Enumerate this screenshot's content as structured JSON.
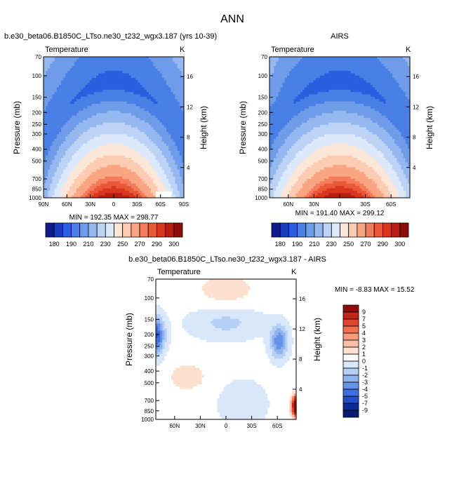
{
  "figure_title": "ANN",
  "chart_data": [
    {
      "type": "heatmap",
      "title": "b.e30_beta06.B1850C_LTso.ne30_t232_wgx3.187 (yrs 10-39)",
      "left_label": "Temperature",
      "right_label": "K",
      "ylabel": "Pressure (mb)",
      "y2label": "Height (km)",
      "x_ticks": [
        "90N",
        "60N",
        "30N",
        "0",
        "30S",
        "60S",
        "90S"
      ],
      "y_ticks": [
        70,
        100,
        150,
        200,
        250,
        300,
        400,
        500,
        700,
        850,
        1000
      ],
      "y2_ticks": [
        16,
        12,
        8,
        4
      ],
      "ylim": [
        70,
        1000
      ],
      "stats": "MIN = 192.35  MAX = 298.77",
      "stats_min": 192.35,
      "stats_max": 298.77,
      "levels_label": [
        "180",
        "190",
        "210",
        "230",
        "250",
        "270",
        "290",
        "300"
      ]
    },
    {
      "type": "heatmap",
      "title": "AIRS",
      "left_label": "Temperature",
      "right_label": "K",
      "ylabel": "Pressure (mb)",
      "y2label": "Height (km)",
      "x_ticks": [
        "60N",
        "30N",
        "0",
        "30S",
        "60S"
      ],
      "y_ticks": [
        70,
        100,
        150,
        200,
        250,
        300,
        400,
        500,
        700,
        850,
        1000
      ],
      "y2_ticks": [
        16,
        12,
        8,
        4
      ],
      "ylim": [
        70,
        1000
      ],
      "stats": "MIN = 191.40  MAX = 299.12",
      "stats_min": 191.4,
      "stats_max": 299.12,
      "levels_label": [
        "180",
        "190",
        "210",
        "230",
        "250",
        "270",
        "290",
        "300"
      ]
    },
    {
      "type": "heatmap",
      "title": "b.e30_beta06.B1850C_LTso.ne30_t232_wgx3.187 - AIRS",
      "left_label": "Temperature",
      "right_label": "K",
      "ylabel": "Pressure (mb)",
      "y2label": "Height (km)",
      "x_ticks": [
        "60N",
        "30N",
        "0",
        "30S",
        "60S"
      ],
      "y_ticks": [
        70,
        100,
        150,
        200,
        250,
        300,
        400,
        500,
        700,
        850,
        1000
      ],
      "y2_ticks": [
        16,
        12,
        8,
        4
      ],
      "ylim": [
        70,
        1000
      ],
      "stats": "MIN =  -8.83  MAX =  15.52",
      "stats_min": -8.83,
      "stats_max": 15.52,
      "legend_labels": [
        "9",
        "7",
        "5",
        "4",
        "3",
        "2",
        "1",
        "0",
        "-1",
        "-2",
        "-3",
        "-4",
        "-5",
        "-7",
        "-9"
      ]
    }
  ],
  "colors": {
    "abs_scale": [
      "#0d1b8c",
      "#1a3dc0",
      "#2b5fe0",
      "#4a7fe6",
      "#6f9ce8",
      "#96b8f0",
      "#bcd3f5",
      "#dce9fa",
      "#fbe6d8",
      "#fccbb1",
      "#f9a582",
      "#f47c5c",
      "#ea5838",
      "#d93620",
      "#b81e12",
      "#8c0e08"
    ],
    "diff_scale": [
      "#8c0e08",
      "#c0261a",
      "#e0472c",
      "#f27051",
      "#f79a7c",
      "#fbbfa5",
      "#fde0cd",
      "#ffffff",
      "#d9e7fb",
      "#b5cff5",
      "#8fb3ee",
      "#6792e6",
      "#3f6fdc",
      "#1f4fc9",
      "#0c2a98",
      "#0a1a6e"
    ]
  }
}
